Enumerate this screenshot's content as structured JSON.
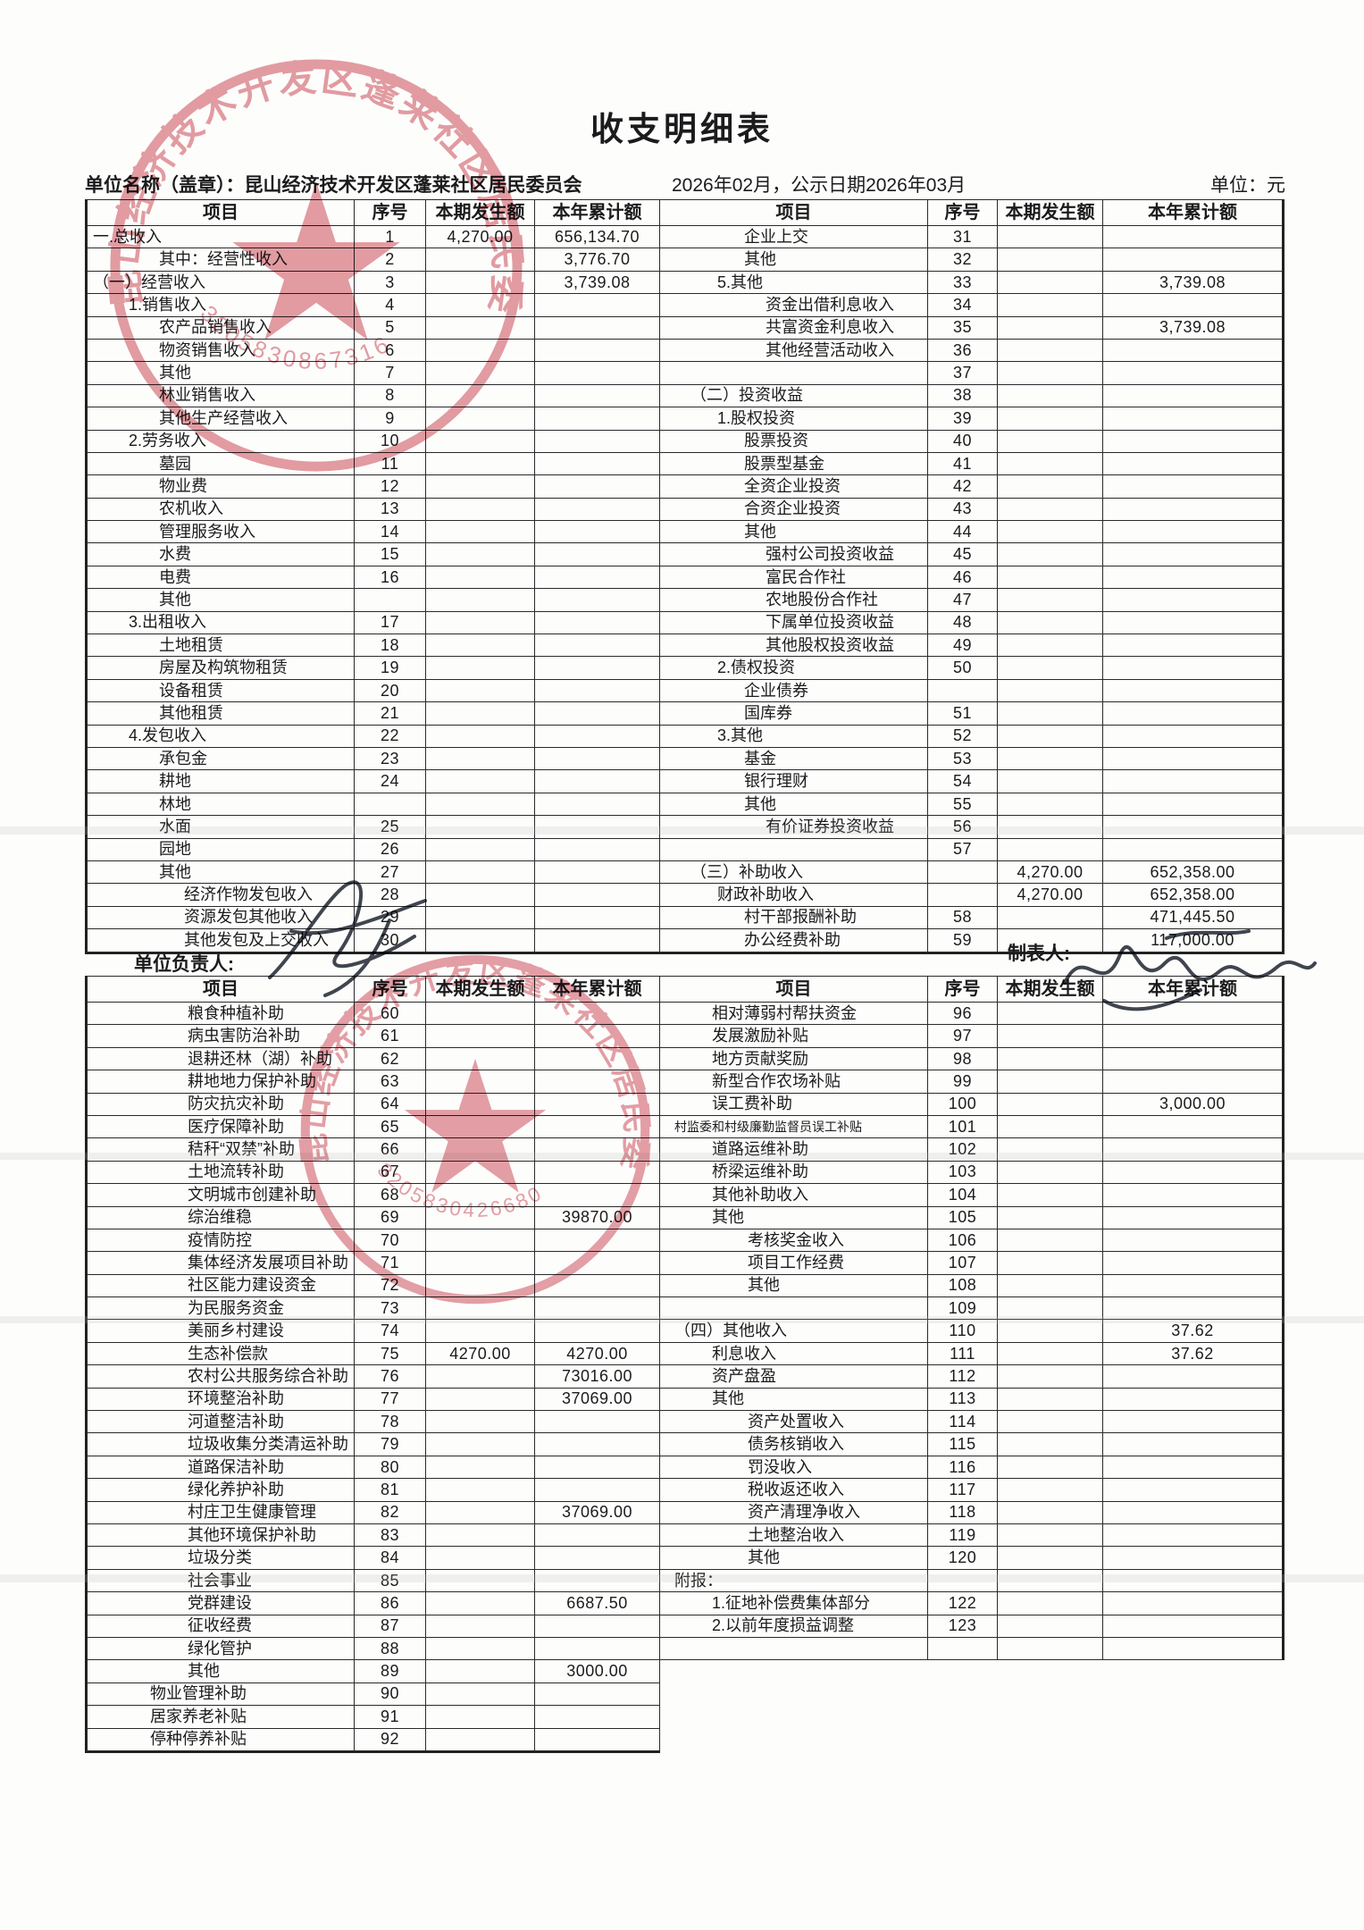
{
  "page": {
    "title": "收支明细表",
    "unit_line": "单位名称（盖章）：昆山经济技术开发区蓬莱社区居民委员会",
    "period_line": "2026年02月，公示日期2026年03月",
    "measure_unit": "单位：元",
    "responsible_label": "单位负责人:",
    "preparer_label": "制表人:"
  },
  "columns": [
    "项目",
    "序号",
    "本期发生额",
    "本年累计额",
    "项目",
    "序号",
    "本期发生额",
    "本年累计额"
  ],
  "stamps": {
    "org_text": "昆山经济技术开发区蓬莱社区居民委员会",
    "serial_top": "3205830867316",
    "serial_bottom": "3205830426680",
    "stamp_color": "#c9414f"
  },
  "table1": {
    "rows": [
      {
        "l": [
          "一.总收入",
          0,
          "1",
          "4,270.00",
          "656,134.70"
        ],
        "r": [
          "企业上交",
          2,
          "31",
          "",
          ""
        ]
      },
      {
        "l": [
          "其中：经营性收入",
          2,
          "2",
          "",
          "3,776.70"
        ],
        "r": [
          "其他",
          2,
          "32",
          "",
          ""
        ]
      },
      {
        "l": [
          "（一）经营收入",
          0,
          "3",
          "",
          "3,739.08"
        ],
        "r": [
          "5.其他",
          1,
          "33",
          "",
          "3,739.08"
        ]
      },
      {
        "l": [
          "1.销售收入",
          1,
          "4",
          "",
          ""
        ],
        "r": [
          "资金出借利息收入",
          3,
          "34",
          "",
          ""
        ]
      },
      {
        "l": [
          "农产品销售收入",
          2,
          "5",
          "",
          ""
        ],
        "r": [
          "共富资金利息收入",
          3,
          "35",
          "",
          "3,739.08"
        ]
      },
      {
        "l": [
          "物资销售收入",
          2,
          "6",
          "",
          ""
        ],
        "r": [
          "其他经营活动收入",
          3,
          "36",
          "",
          ""
        ]
      },
      {
        "l": [
          "其他",
          2,
          "7",
          "",
          ""
        ],
        "r": [
          "",
          0,
          "37",
          "",
          ""
        ]
      },
      {
        "l": [
          "林业销售收入",
          2,
          "8",
          "",
          ""
        ],
        "r": [
          "（二）投资收益",
          0,
          "38",
          "",
          ""
        ]
      },
      {
        "l": [
          "其他生产经营收入",
          2,
          "9",
          "",
          ""
        ],
        "r": [
          "1.股权投资",
          1,
          "39",
          "",
          ""
        ]
      },
      {
        "l": [
          "2.劳务收入",
          1,
          "10",
          "",
          ""
        ],
        "r": [
          "股票投资",
          2,
          "40",
          "",
          ""
        ]
      },
      {
        "l": [
          "墓园",
          2,
          "11",
          "",
          ""
        ],
        "r": [
          "股票型基金",
          2,
          "41",
          "",
          ""
        ]
      },
      {
        "l": [
          "物业费",
          2,
          "12",
          "",
          ""
        ],
        "r": [
          "全资企业投资",
          2,
          "42",
          "",
          ""
        ]
      },
      {
        "l": [
          "农机收入",
          2,
          "13",
          "",
          ""
        ],
        "r": [
          "合资企业投资",
          2,
          "43",
          "",
          ""
        ]
      },
      {
        "l": [
          "管理服务收入",
          2,
          "14",
          "",
          ""
        ],
        "r": [
          "其他",
          2,
          "44",
          "",
          ""
        ]
      },
      {
        "l": [
          "水费",
          2,
          "15",
          "",
          ""
        ],
        "r": [
          "强村公司投资收益",
          3,
          "45",
          "",
          ""
        ]
      },
      {
        "l": [
          "电费",
          2,
          "16",
          "",
          ""
        ],
        "r": [
          "富民合作社",
          3,
          "46",
          "",
          ""
        ]
      },
      {
        "l": [
          "其他",
          2,
          "",
          "",
          ""
        ],
        "r": [
          "农地股份合作社",
          3,
          "47",
          "",
          ""
        ]
      },
      {
        "l": [
          "3.出租收入",
          1,
          "17",
          "",
          ""
        ],
        "r": [
          "下属单位投资收益",
          3,
          "48",
          "",
          ""
        ]
      },
      {
        "l": [
          "土地租赁",
          2,
          "18",
          "",
          ""
        ],
        "r": [
          "其他股权投资收益",
          3,
          "49",
          "",
          ""
        ]
      },
      {
        "l": [
          "房屋及构筑物租赁",
          2,
          "19",
          "",
          ""
        ],
        "r": [
          "2.债权投资",
          1,
          "50",
          "",
          ""
        ]
      },
      {
        "l": [
          "设备租赁",
          2,
          "20",
          "",
          ""
        ],
        "r": [
          "企业债券",
          2,
          "",
          "",
          ""
        ]
      },
      {
        "l": [
          "其他租赁",
          2,
          "21",
          "",
          ""
        ],
        "r": [
          "国库券",
          2,
          "51",
          "",
          ""
        ]
      },
      {
        "l": [
          "4.发包收入",
          1,
          "22",
          "",
          ""
        ],
        "r": [
          "3.其他",
          1,
          "52",
          "",
          ""
        ]
      },
      {
        "l": [
          "承包金",
          2,
          "23",
          "",
          ""
        ],
        "r": [
          "基金",
          2,
          "53",
          "",
          ""
        ]
      },
      {
        "l": [
          "耕地",
          2,
          "24",
          "",
          ""
        ],
        "r": [
          "银行理财",
          2,
          "54",
          "",
          ""
        ]
      },
      {
        "l": [
          "林地",
          2,
          "",
          "",
          ""
        ],
        "r": [
          "其他",
          2,
          "55",
          "",
          ""
        ]
      },
      {
        "l": [
          "水面",
          2,
          "25",
          "",
          ""
        ],
        "r": [
          "有价证券投资收益",
          3,
          "56",
          "",
          ""
        ]
      },
      {
        "l": [
          "园地",
          2,
          "26",
          "",
          ""
        ],
        "r": [
          "",
          0,
          "57",
          "",
          ""
        ]
      },
      {
        "l": [
          "其他",
          2,
          "27",
          "",
          ""
        ],
        "r": [
          "（三）补助收入",
          0,
          "",
          "4,270.00",
          "652,358.00"
        ]
      },
      {
        "l": [
          "经济作物发包收入",
          3,
          "28",
          "",
          ""
        ],
        "r": [
          "财政补助收入",
          1,
          "",
          "4,270.00",
          "652,358.00"
        ]
      },
      {
        "l": [
          "资源发包其他收入",
          3,
          "29",
          "",
          ""
        ],
        "r": [
          "村干部报酬补助",
          2,
          "58",
          "",
          "471,445.50"
        ]
      },
      {
        "l": [
          "其他发包及上交收入",
          3,
          "30",
          "",
          ""
        ],
        "r": [
          "办公经费补助",
          2,
          "59",
          "",
          "117,000.00"
        ]
      }
    ]
  },
  "table2": {
    "rows": [
      {
        "l": [
          "粮食种植补助",
          1,
          "60",
          "",
          ""
        ],
        "r": [
          "相对薄弱村帮扶资金",
          1,
          "96",
          "",
          ""
        ]
      },
      {
        "l": [
          "病虫害防治补助",
          1,
          "61",
          "",
          ""
        ],
        "r": [
          "发展激励补贴",
          1,
          "97",
          "",
          ""
        ]
      },
      {
        "l": [
          "退耕还林（湖）补助",
          1,
          "62",
          "",
          ""
        ],
        "r": [
          "地方贡献奖励",
          1,
          "98",
          "",
          ""
        ]
      },
      {
        "l": [
          "耕地地力保护补助",
          1,
          "63",
          "",
          ""
        ],
        "r": [
          "新型合作农场补贴",
          1,
          "99",
          "",
          ""
        ]
      },
      {
        "l": [
          "防灾抗灾补助",
          1,
          "64",
          "",
          ""
        ],
        "r": [
          "误工费补助",
          1,
          "100",
          "",
          "3,000.00"
        ]
      },
      {
        "l": [
          "医疗保障补助",
          1,
          "65",
          "",
          ""
        ],
        "r": [
          "村监委和村级廉勤监督员误工补贴",
          0,
          "101",
          "",
          "",
          1
        ]
      },
      {
        "l": [
          "秸秆“双禁”补助",
          1,
          "66",
          "",
          ""
        ],
        "r": [
          "道路运维补助",
          1,
          "102",
          "",
          ""
        ]
      },
      {
        "l": [
          "土地流转补助",
          1,
          "67",
          "",
          ""
        ],
        "r": [
          "桥梁运维补助",
          1,
          "103",
          "",
          ""
        ]
      },
      {
        "l": [
          "文明城市创建补助",
          1,
          "68",
          "",
          ""
        ],
        "r": [
          "其他补助收入",
          1,
          "104",
          "",
          ""
        ]
      },
      {
        "l": [
          "综治维稳",
          1,
          "69",
          "",
          "39870.00"
        ],
        "r": [
          "其他",
          1,
          "105",
          "",
          ""
        ]
      },
      {
        "l": [
          "疫情防控",
          1,
          "70",
          "",
          ""
        ],
        "r": [
          "考核奖金收入",
          2,
          "106",
          "",
          ""
        ]
      },
      {
        "l": [
          "集体经济发展项目补助",
          1,
          "71",
          "",
          ""
        ],
        "r": [
          "项目工作经费",
          2,
          "107",
          "",
          ""
        ]
      },
      {
        "l": [
          "社区能力建设资金",
          1,
          "72",
          "",
          ""
        ],
        "r": [
          "其他",
          2,
          "108",
          "",
          ""
        ]
      },
      {
        "l": [
          "为民服务资金",
          1,
          "73",
          "",
          ""
        ],
        "r": [
          "",
          0,
          "109",
          "",
          ""
        ]
      },
      {
        "l": [
          "美丽乡村建设",
          1,
          "74",
          "",
          ""
        ],
        "r": [
          "（四）其他收入",
          0,
          "110",
          "",
          "37.62"
        ]
      },
      {
        "l": [
          "生态补偿款",
          1,
          "75",
          "4270.00",
          "4270.00"
        ],
        "r": [
          "利息收入",
          1,
          "111",
          "",
          "37.62"
        ]
      },
      {
        "l": [
          "农村公共服务综合补助",
          1,
          "76",
          "",
          "73016.00"
        ],
        "r": [
          "资产盘盈",
          1,
          "112",
          "",
          ""
        ]
      },
      {
        "l": [
          "环境整治补助",
          1,
          "77",
          "",
          "37069.00"
        ],
        "r": [
          "其他",
          1,
          "113",
          "",
          ""
        ]
      },
      {
        "l": [
          "河道整洁补助",
          1,
          "78",
          "",
          ""
        ],
        "r": [
          "资产处置收入",
          2,
          "114",
          "",
          ""
        ]
      },
      {
        "l": [
          "垃圾收集分类清运补助",
          1,
          "79",
          "",
          ""
        ],
        "r": [
          "债务核销收入",
          2,
          "115",
          "",
          ""
        ]
      },
      {
        "l": [
          "道路保洁补助",
          1,
          "80",
          "",
          ""
        ],
        "r": [
          "罚没收入",
          2,
          "116",
          "",
          ""
        ]
      },
      {
        "l": [
          "绿化养护补助",
          1,
          "81",
          "",
          ""
        ],
        "r": [
          "税收返还收入",
          2,
          "117",
          "",
          ""
        ]
      },
      {
        "l": [
          "村庄卫生健康管理",
          1,
          "82",
          "",
          "37069.00"
        ],
        "r": [
          "资产清理净收入",
          2,
          "118",
          "",
          ""
        ]
      },
      {
        "l": [
          "其他环境保护补助",
          1,
          "83",
          "",
          ""
        ],
        "r": [
          "土地整治收入",
          2,
          "119",
          "",
          ""
        ]
      },
      {
        "l": [
          "垃圾分类",
          1,
          "84",
          "",
          ""
        ],
        "r": [
          "其他",
          2,
          "120",
          "",
          ""
        ]
      },
      {
        "l": [
          "社会事业",
          1,
          "85",
          "",
          ""
        ],
        "r": [
          "附报：",
          0,
          "",
          "",
          ""
        ]
      },
      {
        "l": [
          "党群建设",
          1,
          "86",
          "",
          "6687.50"
        ],
        "r": [
          "1.征地补偿费集体部分",
          1,
          "122",
          "",
          ""
        ]
      },
      {
        "l": [
          "征收经费",
          1,
          "87",
          "",
          ""
        ],
        "r": [
          "2.以前年度损益调整",
          1,
          "123",
          "",
          ""
        ]
      },
      {
        "l": [
          "绿化管护",
          1,
          "88",
          "",
          ""
        ],
        "r": [
          "",
          0,
          "",
          "",
          ""
        ]
      },
      {
        "l": [
          "其他",
          1,
          "89",
          "",
          "3000.00"
        ],
        "r": null
      },
      {
        "l": [
          "物业管理补助",
          0,
          "90",
          "",
          ""
        ],
        "r": null
      },
      {
        "l": [
          "居家养老补贴",
          0,
          "91",
          "",
          ""
        ],
        "r": null
      },
      {
        "l": [
          "停种停养补贴",
          0,
          "92",
          "",
          ""
        ],
        "r": null
      }
    ]
  }
}
